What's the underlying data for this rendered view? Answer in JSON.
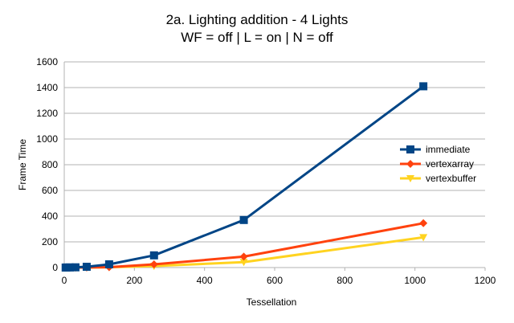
{
  "chart_data": {
    "type": "line",
    "title": "2a. Lighting addition - 4 Lights",
    "subtitle": "WF = off | L = on | N = off",
    "xlabel": "Tessellation",
    "ylabel": "Frame Time",
    "xlim": [
      0,
      1200
    ],
    "ylim": [
      0,
      1600
    ],
    "xticks": [
      0,
      200,
      400,
      600,
      800,
      1000,
      1200
    ],
    "yticks": [
      0,
      200,
      400,
      600,
      800,
      1000,
      1200,
      1400,
      1600
    ],
    "grid": "horizontal",
    "legend_position": "right",
    "series": [
      {
        "name": "immediate",
        "color": "#004586",
        "marker": "square",
        "x": [
          4,
          8,
          16,
          32,
          64,
          128,
          256,
          512,
          1024
        ],
        "y": [
          0,
          1,
          1,
          2,
          6,
          25,
          95,
          370,
          1410
        ]
      },
      {
        "name": "vertexarray",
        "color": "#ff420e",
        "marker": "diamond",
        "x": [
          4,
          8,
          16,
          32,
          64,
          128,
          256,
          512,
          1024
        ],
        "y": [
          0,
          0,
          0,
          0,
          1,
          3,
          25,
          85,
          345
        ]
      },
      {
        "name": "vertexbuffer",
        "color": "#ffd320",
        "marker": "triangle-down",
        "x": [
          4,
          8,
          16,
          32,
          64,
          128,
          256,
          512,
          1024
        ],
        "y": [
          0,
          0,
          0,
          0,
          1,
          2,
          12,
          42,
          235
        ]
      }
    ]
  }
}
